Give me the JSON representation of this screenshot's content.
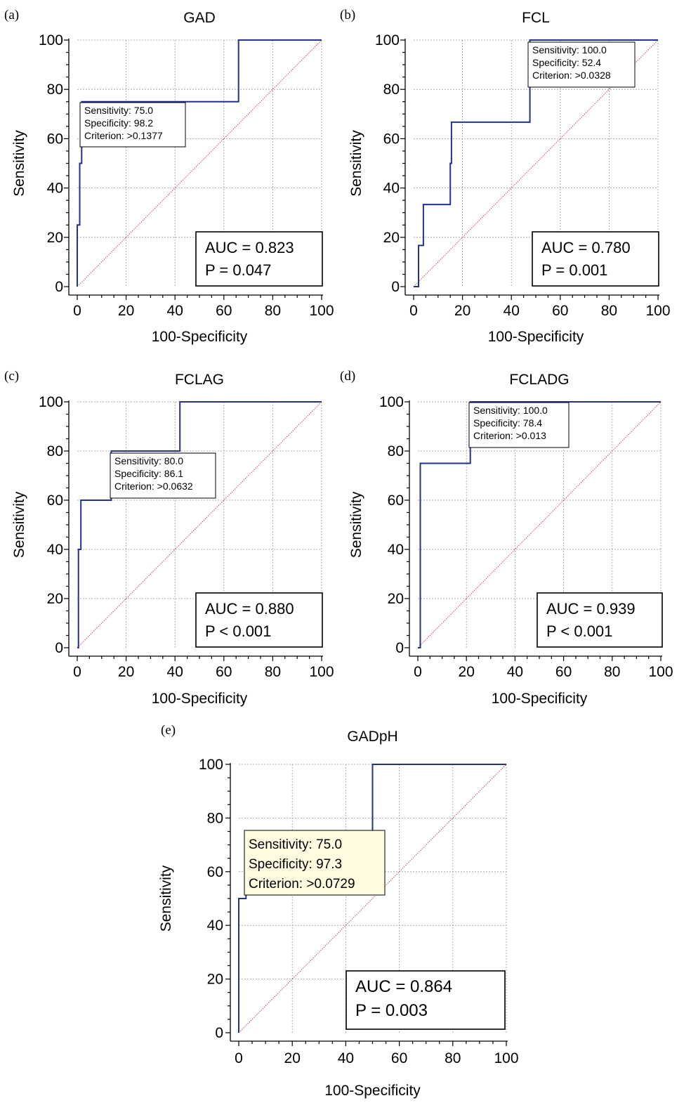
{
  "chart_data": [
    {
      "type": "line",
      "panel": "(a)",
      "title": "GAD",
      "xlabel": "100-Specificity",
      "ylabel": "Sensitivity",
      "xlim": [
        0,
        100
      ],
      "ylim": [
        0,
        100
      ],
      "ticks": [
        0,
        20,
        40,
        60,
        80,
        100
      ],
      "grid": true,
      "reference_line": [
        [
          0,
          0
        ],
        [
          100,
          100
        ]
      ],
      "roc_points": [
        [
          0,
          0
        ],
        [
          0,
          25
        ],
        [
          1,
          25
        ],
        [
          1,
          50
        ],
        [
          1.8,
          50
        ],
        [
          1.8,
          75
        ],
        [
          66,
          75
        ],
        [
          66,
          100
        ],
        [
          100,
          100
        ]
      ],
      "info_box": [
        "Sensitivity: 75.0",
        "Specificity: 98.2",
        "Criterion: >0.1377"
      ],
      "stats": [
        "AUC = 0.823",
        "P = 0.047"
      ]
    },
    {
      "type": "line",
      "panel": "(b)",
      "title": "FCL",
      "xlabel": "100-Specificity",
      "ylabel": "Sensitivity",
      "xlim": [
        0,
        100
      ],
      "ylim": [
        0,
        100
      ],
      "ticks": [
        0,
        20,
        40,
        60,
        80,
        100
      ],
      "grid": true,
      "reference_line": [
        [
          0,
          0
        ],
        [
          100,
          100
        ]
      ],
      "roc_points": [
        [
          0,
          0
        ],
        [
          2,
          0
        ],
        [
          2,
          16.7
        ],
        [
          4,
          16.7
        ],
        [
          4,
          33.3
        ],
        [
          15,
          33.3
        ],
        [
          15,
          50
        ],
        [
          15.5,
          50
        ],
        [
          15.5,
          66.7
        ],
        [
          47.6,
          66.7
        ],
        [
          47.6,
          100
        ],
        [
          100,
          100
        ]
      ],
      "info_box": [
        "Sensitivity: 100.0",
        "Specificity: 52.4",
        "Criterion: >0.0328"
      ],
      "stats": [
        "AUC = 0.780",
        "P = 0.001"
      ]
    },
    {
      "type": "line",
      "panel": "(c)",
      "title": "FCLAG",
      "xlabel": "100-Specificity",
      "ylabel": "Sensitivity",
      "xlim": [
        0,
        100
      ],
      "ylim": [
        0,
        100
      ],
      "ticks": [
        0,
        20,
        40,
        60,
        80,
        100
      ],
      "grid": true,
      "reference_line": [
        [
          0,
          0
        ],
        [
          100,
          100
        ]
      ],
      "roc_points": [
        [
          0,
          0
        ],
        [
          0.5,
          0
        ],
        [
          0.5,
          40
        ],
        [
          1.5,
          40
        ],
        [
          1.5,
          60
        ],
        [
          13.9,
          60
        ],
        [
          13.9,
          80
        ],
        [
          42,
          80
        ],
        [
          42,
          100
        ],
        [
          100,
          100
        ]
      ],
      "info_box": [
        "Sensitivity: 80.0",
        "Specificity: 86.1",
        "Criterion: >0.0632"
      ],
      "stats": [
        "AUC = 0.880",
        "P < 0.001"
      ]
    },
    {
      "type": "line",
      "panel": "(d)",
      "title": "FCLADG",
      "xlabel": "100-Specificity",
      "ylabel": "Sensitivity",
      "xlim": [
        0,
        100
      ],
      "ylim": [
        0,
        100
      ],
      "ticks": [
        0,
        20,
        40,
        60,
        80,
        100
      ],
      "grid": true,
      "reference_line": [
        [
          0,
          0
        ],
        [
          100,
          100
        ]
      ],
      "roc_points": [
        [
          0,
          0
        ],
        [
          1,
          0
        ],
        [
          1,
          75
        ],
        [
          21.6,
          75
        ],
        [
          21.6,
          100
        ],
        [
          100,
          100
        ]
      ],
      "info_box": [
        "Sensitivity: 100.0",
        "Specificity: 78.4",
        "Criterion: >0.013"
      ],
      "stats": [
        "AUC = 0.939",
        "P < 0.001"
      ]
    },
    {
      "type": "line",
      "panel": "(e)",
      "title": "GADpH",
      "xlabel": "100-Specificity",
      "ylabel": "Sensitivity",
      "xlim": [
        0,
        100
      ],
      "ylim": [
        0,
        100
      ],
      "ticks": [
        0,
        20,
        40,
        60,
        80,
        100
      ],
      "grid": true,
      "reference_line": [
        [
          0,
          0
        ],
        [
          100,
          100
        ]
      ],
      "roc_points": [
        [
          0,
          0
        ],
        [
          0,
          50
        ],
        [
          2.7,
          50
        ],
        [
          2.7,
          75
        ],
        [
          50,
          75
        ],
        [
          50,
          100
        ],
        [
          100,
          100
        ]
      ],
      "info_box": [
        "Sensitivity: 75.0",
        "Specificity: 97.3",
        "Criterion: >0.0729"
      ],
      "stats": [
        "AUC = 0.864",
        "P = 0.003"
      ]
    }
  ],
  "colors": {
    "roc_line": "#23318f",
    "reference_line": "#c0393b",
    "info_box_fill_default": "#ffffff",
    "info_box_fill_highlight": "#fffbe0"
  }
}
